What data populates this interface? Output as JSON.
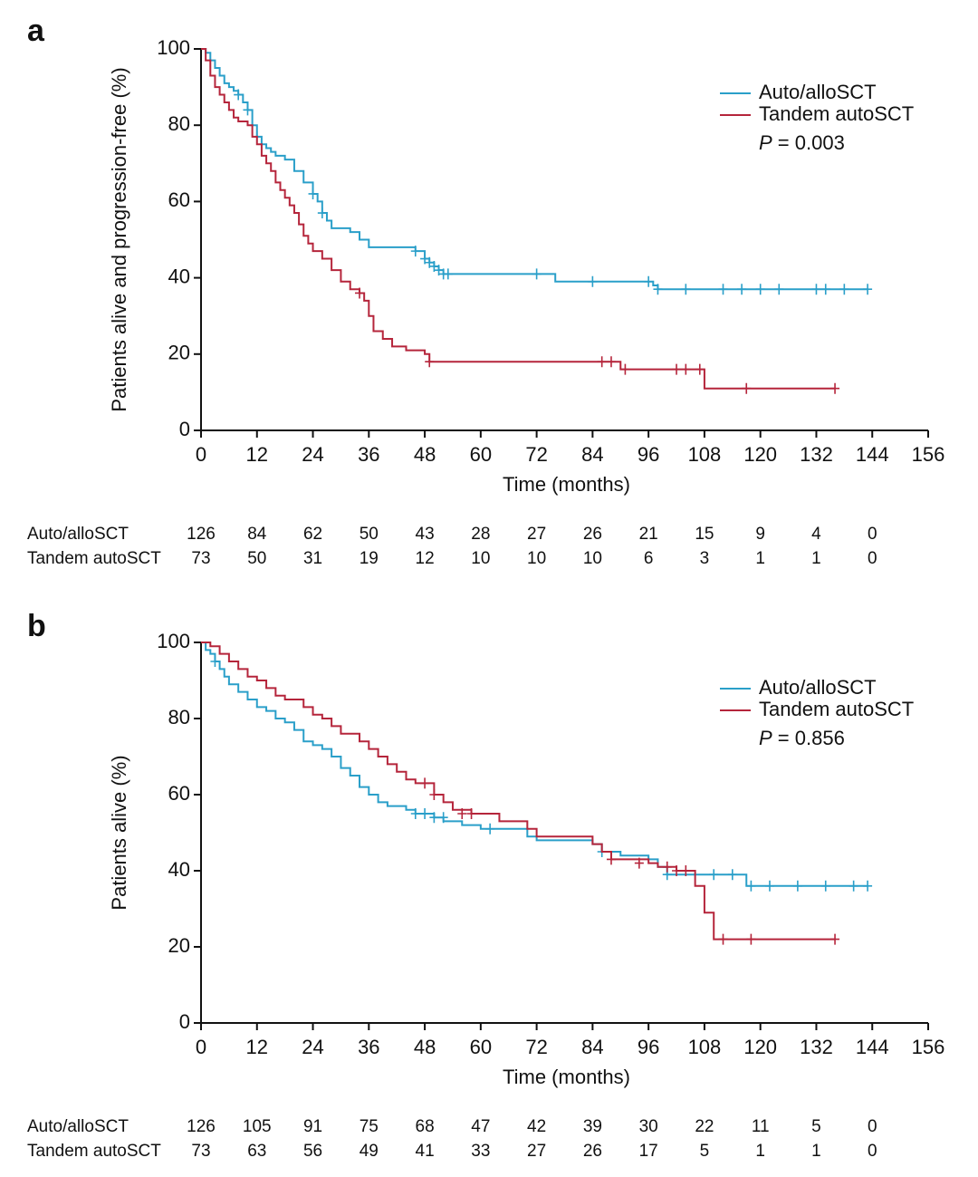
{
  "chart_data": [
    {
      "type": "step",
      "panel_label": "a",
      "y_label": "Patients alive and progression-free (%)",
      "x_label": "Time (months)",
      "xlim": [
        0,
        156
      ],
      "xticks": [
        0,
        12,
        24,
        36,
        48,
        60,
        72,
        84,
        96,
        108,
        120,
        132,
        144,
        156
      ],
      "ylim": [
        0,
        100
      ],
      "yticks": [
        0,
        20,
        40,
        60,
        80,
        100
      ],
      "legend": "upper right",
      "annotation": {
        "symbol": "P",
        "text": "= 0.003"
      },
      "series": [
        {
          "name": "Auto/alloSCT",
          "color": "#2a9fc9",
          "x": [
            0,
            1,
            2,
            3,
            4,
            5,
            6,
            7,
            8,
            9,
            10,
            11,
            12,
            13,
            14,
            15,
            16,
            18,
            20,
            22,
            24,
            25,
            26,
            27,
            28,
            30,
            32,
            34,
            36,
            40,
            44,
            46,
            48,
            49,
            50,
            51,
            52,
            54,
            60,
            72,
            76,
            84,
            96,
            97,
            98,
            108,
            120,
            132,
            143
          ],
          "values": [
            100,
            99,
            97,
            95,
            93,
            91,
            90,
            89,
            88,
            86,
            84,
            80,
            77,
            75,
            74,
            73,
            72,
            71,
            68,
            65,
            62,
            60,
            57,
            55,
            53,
            53,
            52,
            50,
            48,
            48,
            48,
            47,
            45,
            44,
            43,
            42,
            41,
            41,
            41,
            41,
            39,
            39,
            39,
            38,
            37,
            37,
            37,
            37,
            37
          ],
          "censor": {
            "x": [
              8,
              10,
              12,
              24,
              26,
              46,
              48,
              49,
              50,
              51,
              52,
              53,
              72,
              84,
              96,
              98,
              104,
              112,
              116,
              120,
              124,
              132,
              134,
              138,
              143
            ],
            "values": [
              88,
              84,
              77,
              62,
              57,
              47,
              45,
              44,
              43,
              42,
              41,
              41,
              41,
              39,
              39,
              37,
              37,
              37,
              37,
              37,
              37,
              37,
              37,
              37,
              37
            ]
          }
        },
        {
          "name": "Tandem autoSCT",
          "color": "#b5253b",
          "x": [
            0,
            1,
            2,
            3,
            4,
            5,
            6,
            7,
            8,
            10,
            11,
            12,
            13,
            14,
            15,
            16,
            17,
            18,
            19,
            20,
            21,
            22,
            23,
            24,
            26,
            28,
            30,
            32,
            34,
            35,
            36,
            37,
            39,
            41,
            44,
            48,
            49,
            60,
            88,
            90,
            108,
            136
          ],
          "values": [
            100,
            97,
            93,
            90,
            88,
            86,
            84,
            82,
            81,
            80,
            77,
            75,
            72,
            70,
            68,
            65,
            63,
            61,
            59,
            57,
            54,
            51,
            49,
            47,
            45,
            42,
            39,
            37,
            36,
            34,
            30,
            26,
            24,
            22,
            21,
            20,
            18,
            18,
            18,
            16,
            11,
            11
          ],
          "censor": {
            "x": [
              34,
              49,
              86,
              88,
              91,
              102,
              104,
              107,
              117,
              136
            ],
            "values": [
              36,
              18,
              18,
              18,
              16,
              16,
              16,
              16,
              11,
              11
            ]
          }
        }
      ],
      "risk_table": {
        "rows": [
          {
            "name": "Auto/alloSCT",
            "values": [
              126,
              84,
              62,
              50,
              43,
              28,
              27,
              26,
              21,
              15,
              9,
              4,
              0
            ]
          },
          {
            "name": "Tandem autoSCT",
            "values": [
              73,
              50,
              31,
              19,
              12,
              10,
              10,
              10,
              6,
              3,
              1,
              1,
              0
            ]
          }
        ]
      }
    },
    {
      "type": "step",
      "panel_label": "b",
      "y_label": "Patients alive (%)",
      "x_label": "Time (months)",
      "xlim": [
        0,
        156
      ],
      "xticks": [
        0,
        12,
        24,
        36,
        48,
        60,
        72,
        84,
        96,
        108,
        120,
        132,
        144,
        156
      ],
      "ylim": [
        0,
        100
      ],
      "yticks": [
        0,
        20,
        40,
        60,
        80,
        100
      ],
      "legend": "upper right",
      "annotation": {
        "symbol": "P",
        "text": "= 0.856"
      },
      "series": [
        {
          "name": "Auto/alloSCT",
          "color": "#2a9fc9",
          "x": [
            0,
            1,
            2,
            3,
            4,
            5,
            6,
            8,
            10,
            12,
            14,
            16,
            18,
            20,
            22,
            24,
            26,
            28,
            30,
            32,
            34,
            36,
            38,
            40,
            44,
            46,
            50,
            52,
            56,
            60,
            66,
            70,
            72,
            84,
            86,
            90,
            96,
            98,
            100,
            108,
            116,
            117,
            143
          ],
          "values": [
            100,
            98,
            97,
            95,
            93,
            91,
            89,
            87,
            85,
            83,
            82,
            80,
            79,
            77,
            74,
            73,
            72,
            70,
            67,
            65,
            62,
            60,
            58,
            57,
            56,
            55,
            54,
            53,
            52,
            51,
            51,
            49,
            48,
            47,
            45,
            44,
            43,
            41,
            39,
            39,
            39,
            36,
            36
          ],
          "censor": {
            "x": [
              3,
              46,
              48,
              50,
              52,
              62,
              86,
              100,
              110,
              114,
              118,
              122,
              128,
              134,
              140,
              143
            ],
            "values": [
              95,
              55,
              55,
              54,
              54,
              51,
              45,
              39,
              39,
              39,
              36,
              36,
              36,
              36,
              36,
              36
            ]
          }
        },
        {
          "name": "Tandem autoSCT",
          "color": "#b5253b",
          "x": [
            0,
            2,
            4,
            6,
            8,
            10,
            12,
            14,
            16,
            18,
            22,
            24,
            26,
            28,
            30,
            34,
            36,
            38,
            40,
            42,
            44,
            46,
            48,
            50,
            52,
            54,
            58,
            64,
            70,
            72,
            84,
            86,
            88,
            96,
            98,
            102,
            104,
            106,
            108,
            110,
            136
          ],
          "values": [
            100,
            99,
            97,
            95,
            93,
            91,
            90,
            88,
            86,
            85,
            83,
            81,
            80,
            78,
            76,
            74,
            72,
            70,
            68,
            66,
            64,
            63,
            63,
            60,
            58,
            56,
            55,
            53,
            51,
            49,
            47,
            45,
            43,
            42,
            41,
            40,
            40,
            36,
            29,
            22,
            22
          ],
          "censor": {
            "x": [
              48,
              50,
              56,
              58,
              88,
              94,
              100,
              102,
              104,
              112,
              118,
              136
            ],
            "values": [
              63,
              60,
              55,
              55,
              43,
              42,
              41,
              40,
              40,
              22,
              22,
              22
            ]
          }
        }
      ],
      "risk_table": {
        "rows": [
          {
            "name": "Auto/alloSCT",
            "values": [
              126,
              105,
              91,
              75,
              68,
              47,
              42,
              39,
              30,
              22,
              11,
              5,
              0
            ]
          },
          {
            "name": "Tandem autoSCT",
            "values": [
              73,
              63,
              56,
              49,
              41,
              33,
              27,
              26,
              17,
              5,
              1,
              1,
              0
            ]
          }
        ]
      }
    }
  ]
}
